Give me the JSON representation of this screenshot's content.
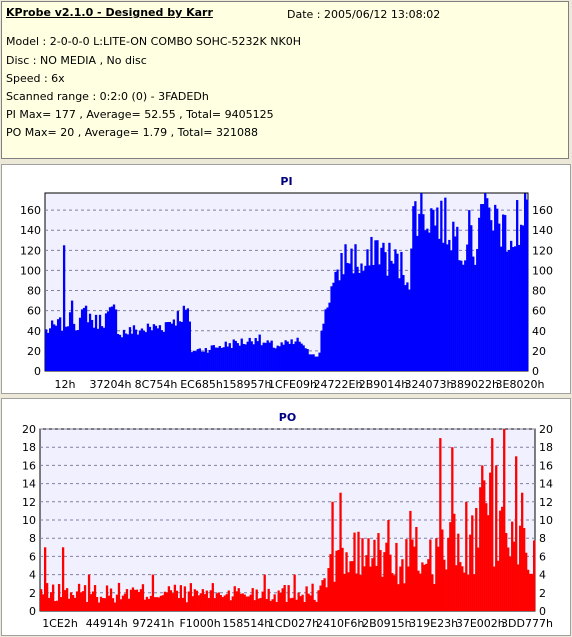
{
  "info": {
    "title": "KProbe v2.1.0 - Designed by Karr",
    "date": "Date : 2005/06/12 13:08:02",
    "lines": [
      "Model : 2-0-0-0 L:LITE-ON COMBO SOHC-5232K NK0H",
      "Disc : NO MEDIA , No disc",
      "Speed : 6x",
      "Scanned range : 0:2:0 (0) - 3FADEDh",
      "PI Max= 177 , Average= 52.55 , Total= 9405125",
      "PO Max= 20 , Average= 1.79 , Total= 321088"
    ]
  },
  "chart_data": [
    {
      "type": "bar",
      "title": "PI",
      "color": "#0000ff",
      "ylim": [
        0,
        177
      ],
      "yticks": [
        0,
        20,
        40,
        60,
        80,
        100,
        120,
        140,
        160
      ],
      "xtick_labels": [
        "12h",
        "37204h",
        "8C754h",
        "EC685h",
        "158957h",
        "1CFE09h",
        "24722Eh",
        "2B9014h",
        "324073h",
        "389022h",
        "3E8020h"
      ],
      "grid": true,
      "profile": [
        [
          0,
          40
        ],
        [
          3,
          45
        ],
        [
          6,
          50
        ],
        [
          9,
          48
        ],
        [
          11,
          60
        ],
        [
          12,
          55
        ],
        [
          13,
          48
        ],
        [
          16,
          52
        ],
        [
          19,
          60
        ],
        [
          20,
          38
        ],
        [
          24,
          40
        ],
        [
          28,
          42
        ],
        [
          32,
          45
        ],
        [
          35,
          52
        ],
        [
          38,
          58
        ],
        [
          39,
          60
        ],
        [
          40,
          20
        ],
        [
          44,
          22
        ],
        [
          48,
          25
        ],
        [
          52,
          28
        ],
        [
          56,
          30
        ],
        [
          58,
          35
        ],
        [
          59,
          28
        ],
        [
          63,
          25
        ],
        [
          67,
          27
        ],
        [
          70,
          30
        ],
        [
          71,
          20
        ],
        [
          73,
          18
        ],
        [
          75,
          16
        ],
        [
          76,
          50
        ],
        [
          78,
          80
        ],
        [
          80,
          88
        ],
        [
          81,
          110
        ],
        [
          83,
          115
        ],
        [
          85,
          112
        ],
        [
          87,
          100
        ],
        [
          89,
          108
        ],
        [
          90,
          128
        ],
        [
          92,
          118
        ],
        [
          94,
          112
        ],
        [
          96,
          108
        ],
        [
          98,
          102
        ],
        [
          100,
          95
        ],
        [
          101,
          165
        ],
        [
          104,
          158
        ],
        [
          107,
          155
        ],
        [
          110,
          145
        ],
        [
          112,
          138
        ],
        [
          114,
          130
        ],
        [
          116,
          125
        ],
        [
          118,
          120
        ],
        [
          119,
          170
        ],
        [
          121,
          160
        ],
        [
          123,
          150
        ],
        [
          125,
          145
        ],
        [
          127,
          140
        ],
        [
          129,
          135
        ],
        [
          130,
          120
        ],
        [
          132,
          170
        ]
      ],
      "spikes": [
        [
          5,
          125
        ],
        [
          7,
          70
        ],
        [
          116,
          160
        ],
        [
          122,
          150
        ],
        [
          129,
          170
        ]
      ]
    },
    {
      "type": "bar",
      "title": "PO",
      "color": "#ff0000",
      "ylim": [
        0,
        20
      ],
      "yticks": [
        0,
        2,
        4,
        6,
        8,
        10,
        12,
        14,
        16,
        18,
        20
      ],
      "xtick_labels": [
        "1CE2h",
        "44914h",
        "97241h",
        "F1000h",
        "158514h",
        "1CD027h",
        "2410F6h",
        "2B0915h",
        "319E23h",
        "37E002h",
        "3DD777h"
      ],
      "grid": true,
      "profile": [
        [
          0,
          2
        ],
        [
          20,
          2
        ],
        [
          40,
          2
        ],
        [
          60,
          2
        ],
        [
          70,
          2
        ],
        [
          75,
          2
        ],
        [
          76,
          4
        ],
        [
          80,
          5
        ],
        [
          85,
          6
        ],
        [
          90,
          6
        ],
        [
          95,
          5
        ],
        [
          100,
          6
        ],
        [
          104,
          6
        ],
        [
          108,
          7
        ],
        [
          112,
          7
        ],
        [
          116,
          8
        ],
        [
          120,
          10
        ],
        [
          124,
          7
        ],
        [
          128,
          8
        ],
        [
          132,
          6
        ]
      ],
      "spikes": [
        [
          1,
          7
        ],
        [
          6,
          7
        ],
        [
          13,
          4
        ],
        [
          30,
          4
        ],
        [
          60,
          4
        ],
        [
          68,
          4
        ],
        [
          78,
          12
        ],
        [
          80,
          13
        ],
        [
          86,
          8
        ],
        [
          93,
          10
        ],
        [
          99,
          11
        ],
        [
          106,
          8
        ],
        [
          107,
          19
        ],
        [
          110,
          18
        ],
        [
          114,
          12
        ],
        [
          118,
          16
        ],
        [
          121,
          19
        ],
        [
          122,
          16
        ],
        [
          124,
          20
        ],
        [
          127,
          17
        ],
        [
          129,
          13
        ]
      ]
    }
  ]
}
